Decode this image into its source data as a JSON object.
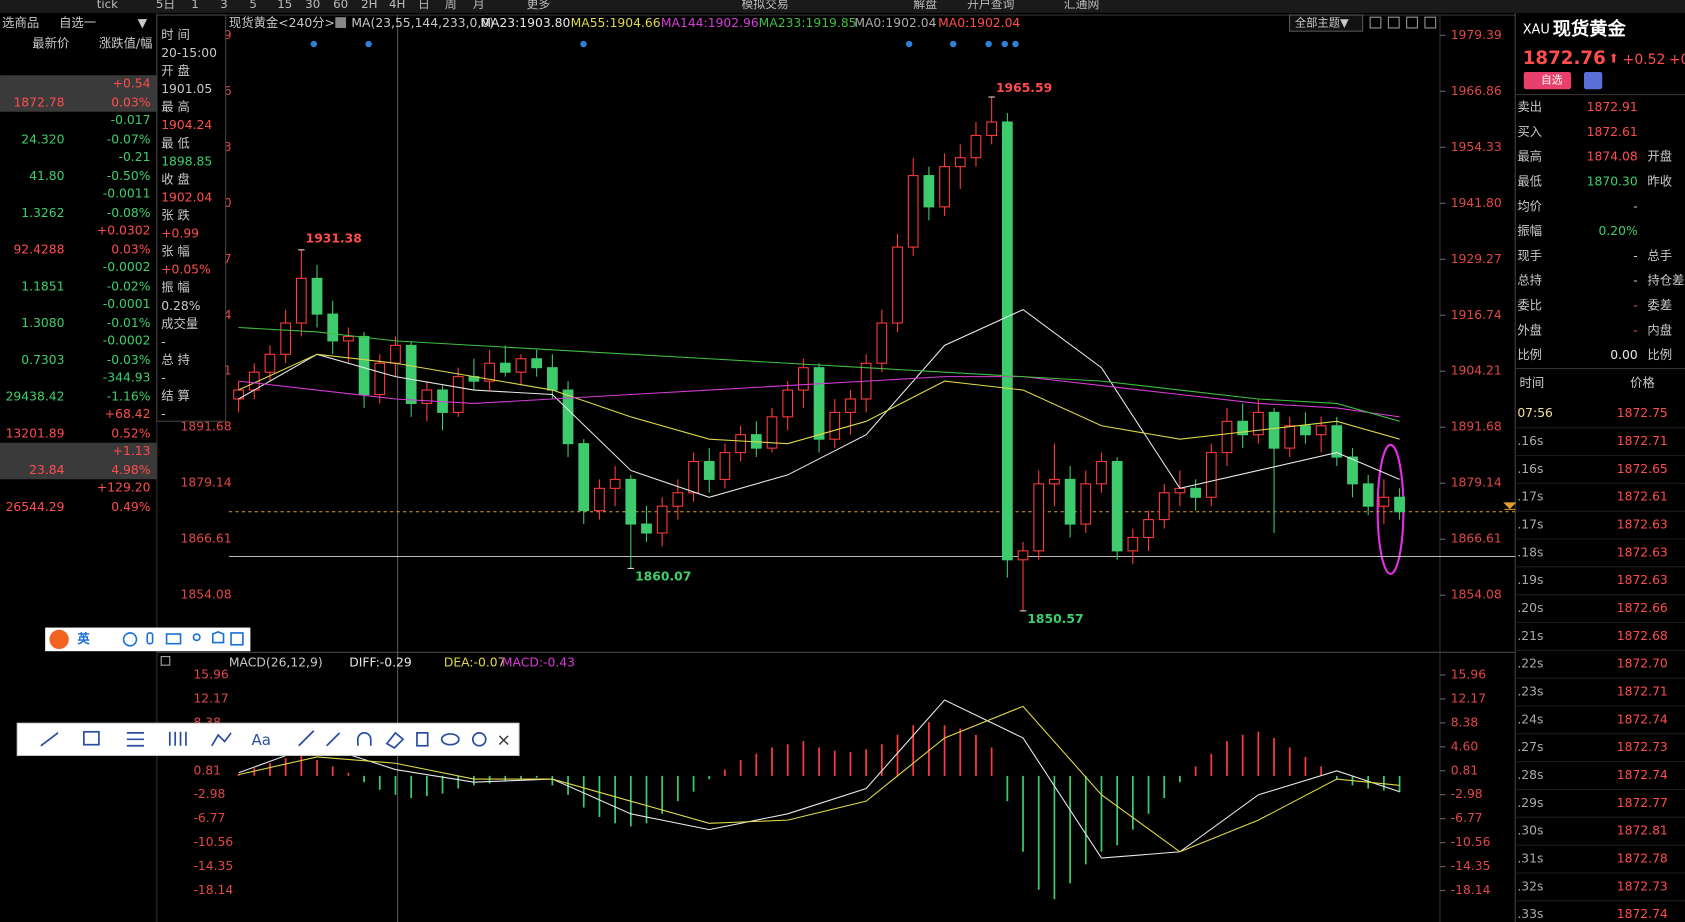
{
  "toolbar": {
    "items": [
      "tick",
      "5日",
      "1",
      "3",
      "5",
      "15",
      "30",
      "60",
      "2H",
      "4H",
      "日",
      "周",
      "月",
      "更多",
      "模拟交易",
      "解盘",
      "开户查询",
      "汇通网"
    ]
  },
  "watchlist": {
    "menu": "选商品",
    "group": "自选一",
    "dropdown": "▼",
    "col_price": "最新价",
    "col_change": "涨跌值/幅",
    "rows": [
      {
        "change": "+0.54",
        "price": "1872.78",
        "pct": "0.03%",
        "color": "#ff4d4d",
        "highlight": true
      },
      {
        "change": "-0.017",
        "price": "24.320",
        "pct": "-0.07%",
        "color": "#3fcf6a"
      },
      {
        "change": "-0.21",
        "price": "41.80",
        "pct": "-0.50%",
        "color": "#3fcf6a"
      },
      {
        "change": "-0.0011",
        "price": "1.3262",
        "pct": "-0.08%",
        "color": "#3fcf6a"
      },
      {
        "change": "+0.0302",
        "price": "92.4288",
        "pct": "0.03%",
        "color": "#ff4d4d"
      },
      {
        "change": "-0.0002",
        "price": "1.1851",
        "pct": "-0.02%",
        "color": "#3fcf6a"
      },
      {
        "change": "-0.0001",
        "price": "1.3080",
        "pct": "-0.01%",
        "color": "#3fcf6a"
      },
      {
        "change": "-0.0002",
        "price": "0.7303",
        "pct": "-0.03%",
        "color": "#3fcf6a"
      },
      {
        "change": "-344.93",
        "price": "29438.42",
        "pct": "-1.16%",
        "color": "#3fcf6a"
      },
      {
        "change": "+68.42",
        "price": "13201.89",
        "pct": "0.52%",
        "color": "#ff4d4d"
      },
      {
        "change": "+1.13",
        "price": "23.84",
        "pct": "4.98%",
        "color": "#ff4d4d",
        "highlight": true
      },
      {
        "change": "+129.20",
        "price": "26544.29",
        "pct": "0.49%",
        "color": "#ff4d4d"
      }
    ]
  },
  "info_panel": {
    "items": [
      {
        "label": "时 间",
        "value": "20-15:00",
        "color": "#c8c8c8"
      },
      {
        "label": "开 盘",
        "value": "1901.05",
        "color": "#c8c8c8"
      },
      {
        "label": "最 高",
        "value": "1904.24",
        "color": "#ff4d4d"
      },
      {
        "label": "最 低",
        "value": "1898.85",
        "color": "#3fcf6a"
      },
      {
        "label": "收 盘",
        "value": "1902.04",
        "color": "#ff4d4d"
      },
      {
        "label": "张 跌",
        "value": "+0.99",
        "color": "#ff4d4d"
      },
      {
        "label": "张 幅",
        "value": "+0.05%",
        "color": "#ff4d4d"
      },
      {
        "label": "振 幅",
        "value": "0.28%",
        "color": "#c8c8c8"
      },
      {
        "label": "成交量",
        "value": "-",
        "color": "#c8c8c8"
      },
      {
        "label": "总 持",
        "value": "-",
        "color": "#c8c8c8"
      },
      {
        "label": "结 算",
        "value": "-",
        "color": "#c8c8c8"
      }
    ]
  },
  "chart_data": [
    {
      "type": "candlestick",
      "title": "现货黄金<240分>",
      "ma_params": "MA(23,55,144,233,0,0)",
      "theme_menu": "全部主题▼",
      "up_color": "#ff3b3b",
      "down_color": "#3ecb6e",
      "ylim": [
        1841.3,
        1983.7
      ],
      "yticks": [
        1979.39,
        1966.86,
        1954.33,
        {
          "value": 1941.8,
          "label": "1941.80"
        },
        1929.27,
        1916.74,
        1904.21,
        1891.68,
        1879.14,
        1866.61,
        1854.08
      ],
      "hline": 1862.74,
      "candles": [
        [
          1898,
          1902,
          1895,
          1900
        ],
        [
          1900,
          1906,
          1898,
          1904
        ],
        [
          1904,
          1910,
          1902,
          1908
        ],
        [
          1908,
          1918,
          1906,
          1915
        ],
        [
          1915,
          1931.38,
          1912,
          1925
        ],
        [
          1925,
          1928,
          1914,
          1917
        ],
        [
          1917,
          1920,
          1908,
          1911
        ],
        [
          1911,
          1914,
          1906,
          1912
        ],
        [
          1912,
          1913,
          1896,
          1899
        ],
        [
          1899,
          1908,
          1897,
          1906
        ],
        [
          1906,
          1912,
          1903,
          1910
        ],
        [
          1910,
          1911,
          1894,
          1897
        ],
        [
          1897,
          1902,
          1893,
          1900
        ],
        [
          1900,
          1901,
          1891,
          1895
        ],
        [
          1895,
          1905,
          1894,
          1903
        ],
        [
          1903,
          1907,
          1900,
          1902
        ],
        [
          1902,
          1909,
          1900,
          1906
        ],
        [
          1906,
          1910,
          1903,
          1904
        ],
        [
          1904,
          1908,
          1901,
          1907
        ],
        [
          1907,
          1909,
          1903,
          1905
        ],
        [
          1905,
          1908,
          1898,
          1900
        ],
        [
          1900,
          1902,
          1885,
          1888
        ],
        [
          1888,
          1889,
          1870,
          1873
        ],
        [
          1873,
          1880,
          1871,
          1878
        ],
        [
          1878,
          1883,
          1874,
          1880
        ],
        [
          1880,
          1881,
          1860.07,
          1870
        ],
        [
          1870,
          1874,
          1866,
          1868
        ],
        [
          1868,
          1876,
          1865,
          1874
        ],
        [
          1874,
          1880,
          1871,
          1877
        ],
        [
          1877,
          1886,
          1875,
          1884
        ],
        [
          1884,
          1887,
          1877,
          1880
        ],
        [
          1880,
          1888,
          1878,
          1886
        ],
        [
          1886,
          1892,
          1884,
          1890
        ],
        [
          1890,
          1893,
          1885,
          1887
        ],
        [
          1887,
          1896,
          1886,
          1894
        ],
        [
          1894,
          1902,
          1891,
          1900
        ],
        [
          1900,
          1907,
          1896,
          1905
        ],
        [
          1905,
          1906,
          1886,
          1889
        ],
        [
          1889,
          1898,
          1887,
          1895
        ],
        [
          1895,
          1900,
          1890,
          1898
        ],
        [
          1898,
          1908,
          1895,
          1906
        ],
        [
          1906,
          1918,
          1904,
          1915
        ],
        [
          1915,
          1935,
          1913,
          1932
        ],
        [
          1932,
          1952,
          1930,
          1948
        ],
        [
          1948,
          1950,
          1938,
          1941
        ],
        [
          1941,
          1953,
          1939,
          1950
        ],
        [
          1950,
          1955,
          1945,
          1952
        ],
        [
          1952,
          1960,
          1950,
          1957
        ],
        [
          1957,
          1965.59,
          1955,
          1960
        ],
        [
          1960,
          1962,
          1858,
          1862
        ],
        [
          1862,
          1866,
          1850.57,
          1864
        ],
        [
          1864,
          1882,
          1862,
          1879
        ],
        [
          1879,
          1888,
          1874,
          1880
        ],
        [
          1880,
          1883,
          1867,
          1870
        ],
        [
          1870,
          1882,
          1868,
          1879
        ],
        [
          1879,
          1886,
          1877,
          1884
        ],
        [
          1884,
          1885,
          1862,
          1864
        ],
        [
          1864,
          1869,
          1861,
          1867
        ],
        [
          1867,
          1873,
          1864,
          1871
        ],
        [
          1871,
          1879,
          1869,
          1877
        ],
        [
          1877,
          1882,
          1874,
          1878
        ],
        [
          1878,
          1880,
          1873,
          1876
        ],
        [
          1876,
          1888,
          1874,
          1886
        ],
        [
          1886,
          1896,
          1883,
          1893
        ],
        [
          1893,
          1897,
          1887,
          1890
        ],
        [
          1890,
          1898,
          1888,
          1895
        ],
        [
          1895,
          1896,
          1868,
          1887
        ],
        [
          1887,
          1894,
          1885,
          1892
        ],
        [
          1892,
          1895,
          1888,
          1890
        ],
        [
          1890,
          1894,
          1886,
          1892
        ],
        [
          1892,
          1894,
          1883,
          1885
        ],
        [
          1885,
          1887,
          1876,
          1879
        ],
        [
          1879,
          1881,
          1872,
          1874
        ],
        [
          1874,
          1880,
          1870,
          1876
        ],
        [
          1876,
          1878,
          1871,
          1872.76
        ]
      ],
      "x": [
        0,
        5,
        10,
        15,
        20,
        25,
        30,
        35,
        40,
        45,
        50,
        55,
        60,
        65,
        70,
        74
      ],
      "series": [
        {
          "name": "MA23:1903.80",
          "color": "#e8e8e8",
          "values": [
            1898,
            1908,
            1903,
            1900,
            1899,
            1882,
            1876,
            1881,
            1890,
            1910,
            1918,
            1905,
            1878,
            1882,
            1886,
            1880
          ]
        },
        {
          "name": "MA55:1904.66",
          "color": "#e0d84a",
          "values": [
            1900,
            1908,
            1906,
            1903,
            1900,
            1894,
            1889,
            1888,
            1893,
            1902,
            1900,
            1892,
            1889,
            1891,
            1893,
            1889
          ]
        },
        {
          "name": "MA144:1902.96",
          "color": "#d63bd6",
          "values": [
            1902,
            1900,
            1898,
            1897,
            1898,
            1899,
            1900,
            1901,
            1902,
            1903,
            1903,
            1901,
            1899,
            1897,
            1896,
            1894
          ]
        },
        {
          "name": "MA233:1919.85",
          "color": "#3fbf3f",
          "values": [
            1914,
            1913,
            1911,
            1910,
            1909,
            1908,
            1907,
            1906,
            1905,
            1904,
            1903,
            1902,
            1900,
            1898,
            1897,
            1893
          ]
        }
      ],
      "legend_extra": [
        {
          "name": "MA0:1902.04",
          "color": "#aaaaaa"
        },
        {
          "name": "MA0:1902.04",
          "color": "#ff4d4d"
        }
      ]
    },
    {
      "type": "macd",
      "title": "MACD(26,12,9)",
      "ylim": [
        -22.6,
        18.7
      ],
      "yticks": [
        15.96,
        12.17,
        8.38,
        {
          "value": 4.6,
          "label": "4.60"
        },
        0.81,
        -2.98,
        -6.77,
        -10.56,
        -14.35,
        -18.14
      ],
      "x": [
        0,
        5,
        10,
        15,
        20,
        25,
        30,
        35,
        40,
        45,
        50,
        55,
        60,
        65,
        70,
        74
      ],
      "series": [
        {
          "name": "DIFF:-0.29",
          "color": "#e8e8e8",
          "values": [
            0.5,
            5.0,
            1.0,
            -1.0,
            -0.5,
            -6.0,
            -8.5,
            -6.0,
            -2.0,
            12.0,
            6.0,
            -13.0,
            -12.0,
            -3.0,
            0.8,
            -2.5
          ]
        },
        {
          "name": "DEA:-0.07",
          "color": "#e0d84a",
          "values": [
            0.2,
            3.0,
            2.0,
            -0.5,
            -0.5,
            -4.0,
            -7.5,
            -7.0,
            -4.0,
            6.0,
            11.0,
            -3.0,
            -12.0,
            -7.0,
            -0.5,
            -1.5
          ]
        }
      ],
      "histogram": {
        "name": "MACD:-0.43",
        "color": "#d63bd6",
        "up_color": "#ff3b3b",
        "down_color": "#3ecb6e",
        "values": [
          0.3,
          1.2,
          2.0,
          2.8,
          3.5,
          2.5,
          1.5,
          0.5,
          -1.0,
          -2.2,
          -3.0,
          -3.5,
          -3.2,
          -2.8,
          -2.0,
          -1.5,
          -1.2,
          -0.8,
          -0.5,
          -0.3,
          -1.5,
          -3.0,
          -5.0,
          -6.5,
          -7.5,
          -8.0,
          -7.5,
          -6.0,
          -4.0,
          -2.5,
          -0.5,
          1.0,
          2.5,
          3.5,
          4.5,
          5.0,
          5.5,
          4.5,
          4.0,
          3.8,
          4.2,
          5.0,
          6.5,
          8.0,
          8.5,
          8.0,
          7.5,
          6.5,
          4.5,
          -4.0,
          -12.0,
          -18.0,
          -19.5,
          -17.0,
          -14.0,
          -12.0,
          -11.0,
          -8.5,
          -6.0,
          -3.5,
          -1.0,
          1.5,
          3.5,
          5.5,
          6.5,
          7.0,
          6.0,
          4.5,
          3.0,
          1.5,
          -0.5,
          -1.5,
          -2.0,
          -2.3,
          -2.6
        ]
      }
    }
  ],
  "quote_panel": {
    "code": "XAU",
    "name": "现货黄金",
    "price": "1872.76",
    "arrow": "⬆",
    "change": "+0.52",
    "pct_clipped": "+0",
    "watch_button": "自选",
    "fields": [
      {
        "label": "卖出",
        "value": "1872.91",
        "color": "#ff4d4d"
      },
      {
        "label": "买入",
        "value": "1872.61",
        "color": "#ff4d4d"
      },
      {
        "label": "最高",
        "value": "1874.08",
        "right": "开盘",
        "color": "#ff4d4d"
      },
      {
        "label": "最低",
        "value": "1870.30",
        "right": "昨收",
        "color": "#3fcf6a"
      },
      {
        "label": "均价",
        "value": "-",
        "color": "#c8c8c8"
      },
      {
        "label": "振幅",
        "value": "0.20%",
        "color": "#3fcf6a"
      },
      {
        "label": "现手",
        "value": "-",
        "right": "总手",
        "color": "#c8c8c8"
      },
      {
        "label": "总持",
        "value": "-",
        "right": "持仓差",
        "color": "#c8c8c8"
      },
      {
        "label": "委比",
        "value": "-",
        "right": "委差",
        "color": "#ff4d4d"
      },
      {
        "label": "外盘",
        "value": "-",
        "right": "内盘",
        "color": "#ff4d4d"
      },
      {
        "label": "比例",
        "value": "0.00",
        "right": "比例",
        "color": "#e8e8e8"
      }
    ],
    "ticks_header": [
      "时间",
      "价格"
    ],
    "ticks": [
      {
        "time": "07:56",
        "price": "1872.75"
      },
      {
        "time": ".16s",
        "price": "1872.71"
      },
      {
        "time": ".16s",
        "price": "1872.65"
      },
      {
        "time": ".17s",
        "price": "1872.61"
      },
      {
        "time": ".17s",
        "price": "1872.63"
      },
      {
        "time": ".18s",
        "price": "1872.63"
      },
      {
        "time": ".19s",
        "price": "1872.63"
      },
      {
        "time": ".20s",
        "price": "1872.66"
      },
      {
        "time": ".21s",
        "price": "1872.68"
      },
      {
        "time": ".22s",
        "price": "1872.70"
      },
      {
        "time": ".23s",
        "price": "1872.71"
      },
      {
        "time": ".24s",
        "price": "1872.74"
      },
      {
        "time": ".27s",
        "price": "1872.73"
      },
      {
        "time": ".28s",
        "price": "1872.74"
      },
      {
        "time": ".29s",
        "price": "1872.77"
      },
      {
        "time": ".30s",
        "price": "1872.81"
      },
      {
        "time": ".31s",
        "price": "1872.78"
      },
      {
        "time": ".32s",
        "price": "1872.73"
      },
      {
        "time": ".33s",
        "price": "1872.74"
      }
    ]
  },
  "floating": {
    "ime_mode": "英",
    "font_tool": "Aa",
    "close": "×"
  }
}
